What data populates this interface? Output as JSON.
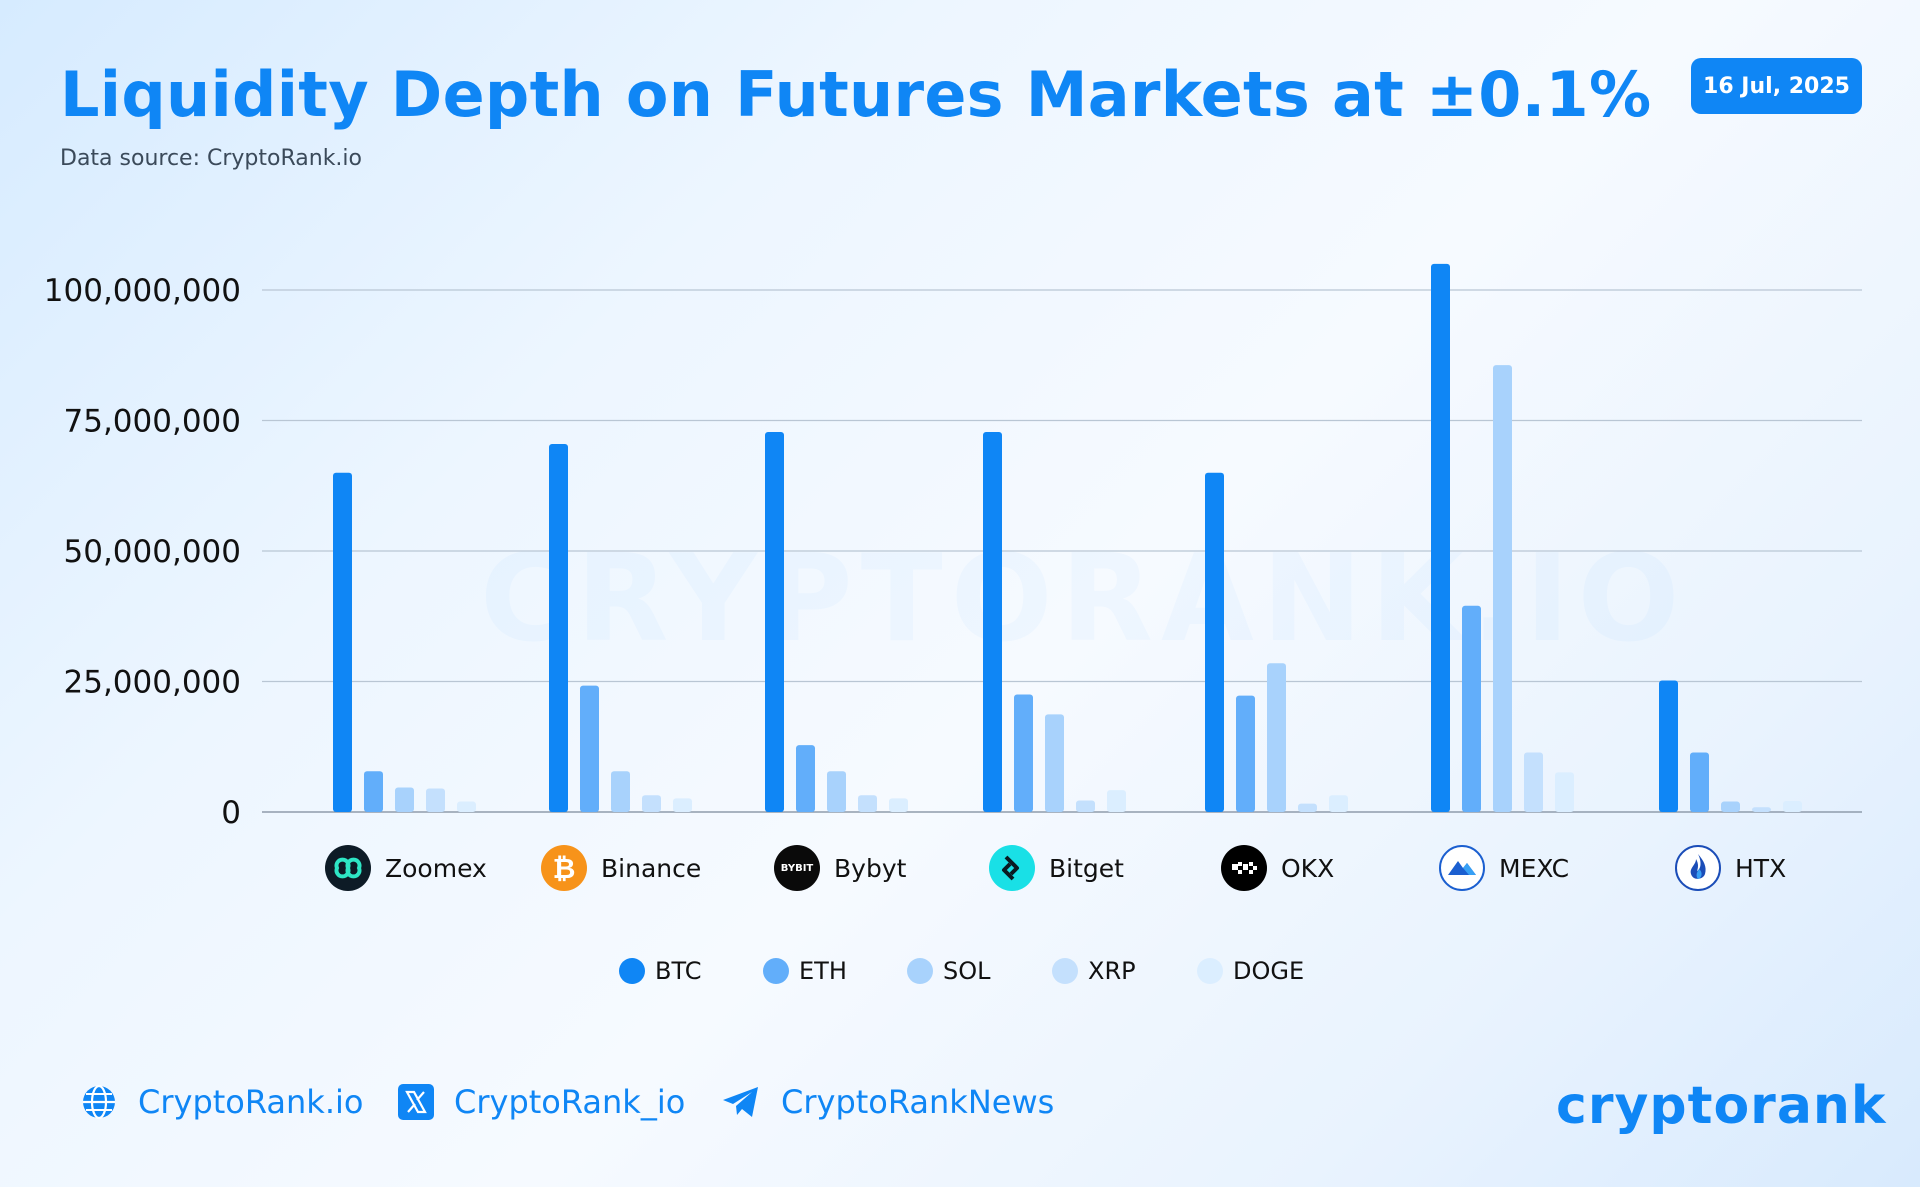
{
  "header": {
    "title": "Liquidity Depth on Futures Markets at ±0.1%",
    "subtitle": "Data source: CryptoRank.io",
    "date": "16 Jul, 2025"
  },
  "watermark": "CRYPTORANK.IO",
  "chart_data": {
    "type": "bar",
    "title": "Liquidity Depth on Futures Markets at ±0.1%",
    "xlabel": "",
    "ylabel": "",
    "ylim": [
      0,
      105000000
    ],
    "yticks": [
      0,
      25000000,
      50000000,
      75000000,
      100000000
    ],
    "ytick_labels": [
      "0",
      "25,000,000",
      "50,000,000",
      "75,000,000",
      "100,000,000"
    ],
    "grid": true,
    "legend_position": "bottom",
    "categories": [
      "Zoomex",
      "Binance",
      "Bybyt",
      "Bitget",
      "OKX",
      "MEXC",
      "HTX"
    ],
    "series": [
      {
        "name": "BTC",
        "color": "#0f86f5",
        "values": [
          65000000,
          70500000,
          72800000,
          72800000,
          65000000,
          105000000,
          25200000
        ]
      },
      {
        "name": "ETH",
        "color": "#62aefa",
        "values": [
          7800000,
          24200000,
          12800000,
          22500000,
          22300000,
          39500000,
          11400000
        ]
      },
      {
        "name": "SOL",
        "color": "#a8d2fc",
        "values": [
          4700000,
          7800000,
          7800000,
          18700000,
          28500000,
          85600000,
          2000000
        ]
      },
      {
        "name": "XRP",
        "color": "#c4e0fd",
        "values": [
          4500000,
          3200000,
          3200000,
          2200000,
          1600000,
          11400000,
          900000
        ]
      },
      {
        "name": "DOGE",
        "color": "#dbeeff",
        "values": [
          2000000,
          2600000,
          2600000,
          4200000,
          3200000,
          7600000,
          2100000
        ]
      }
    ]
  },
  "exchanges": [
    {
      "label": "Zoomex",
      "icon": "zoomex-logo-icon"
    },
    {
      "label": "Binance",
      "icon": "binance-logo-icon"
    },
    {
      "label": "Bybyt",
      "icon": "bybit-logo-icon",
      "logo_text": "BYBIT"
    },
    {
      "label": "Bitget",
      "icon": "bitget-logo-icon"
    },
    {
      "label": "OKX",
      "icon": "okx-logo-icon"
    },
    {
      "label": "MEXC",
      "icon": "mexc-logo-icon"
    },
    {
      "label": "HTX",
      "icon": "htx-logo-icon"
    }
  ],
  "legend": [
    "BTC",
    "ETH",
    "SOL",
    "XRP",
    "DOGE"
  ],
  "footer": {
    "website": "CryptoRank.io",
    "twitter": "CryptoRank_io",
    "telegram": "CryptoRankNews",
    "brand": "cryptorank"
  },
  "colors": {
    "accent": "#0f86f5",
    "grid": "#b9c6d4"
  }
}
